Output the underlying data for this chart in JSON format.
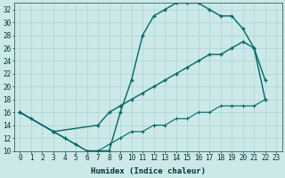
{
  "xlabel": "Humidex (Indice chaleur)",
  "bg_color": "#cce8e8",
  "grid_color": "#b0d8d8",
  "line_color": "#006868",
  "xlim": [
    -0.5,
    23.5
  ],
  "ylim": [
    10,
    33
  ],
  "xticks": [
    0,
    1,
    2,
    3,
    4,
    5,
    6,
    7,
    8,
    9,
    10,
    11,
    12,
    13,
    14,
    15,
    16,
    17,
    18,
    19,
    20,
    21,
    22,
    23
  ],
  "yticks": [
    10,
    12,
    14,
    16,
    18,
    20,
    22,
    24,
    26,
    28,
    30,
    32
  ],
  "curve1_x": [
    0,
    1,
    3,
    4,
    5,
    6,
    7,
    8,
    9,
    10,
    11,
    12,
    13,
    14,
    15,
    16,
    17,
    18,
    19,
    20,
    21,
    22
  ],
  "curve1_y": [
    16,
    15,
    13,
    12,
    11,
    10,
    10,
    10,
    16,
    21,
    28,
    31,
    32,
    33,
    33,
    33,
    32,
    31,
    31,
    29,
    26,
    21
  ],
  "curve2_x": [
    0,
    3,
    7,
    8,
    9,
    10,
    11,
    12,
    13,
    14,
    15,
    16,
    17,
    18,
    19,
    20,
    21,
    22
  ],
  "curve2_y": [
    16,
    13,
    14,
    16,
    17,
    18,
    19,
    20,
    21,
    22,
    23,
    24,
    25,
    25,
    26,
    27,
    26,
    18
  ],
  "curve3_x": [
    0,
    3,
    4,
    5,
    6,
    7,
    8,
    9,
    10,
    11,
    12,
    13,
    14,
    15,
    16,
    17,
    18,
    19,
    20,
    21,
    22
  ],
  "curve3_y": [
    16,
    13,
    12,
    11,
    10,
    10,
    11,
    12,
    13,
    13,
    14,
    14,
    15,
    15,
    16,
    16,
    17,
    17,
    17,
    17,
    18
  ]
}
